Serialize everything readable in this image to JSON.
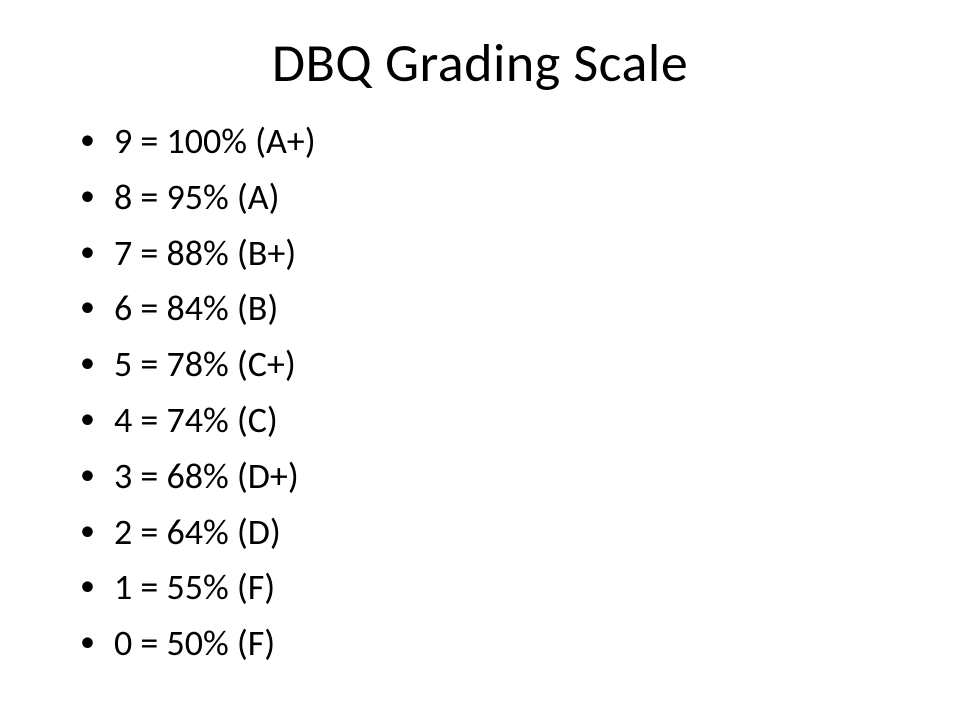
{
  "slide": {
    "title": "DBQ Grading Scale",
    "title_fontsize": 54,
    "title_color": "#000000",
    "background_color": "#ffffff",
    "bullet_color": "#000000",
    "bullet_fontsize": 36,
    "items": [
      "9 = 100% (A+)",
      "8 = 95% (A)",
      "7 = 88% (B+)",
      "6 = 84% (B)",
      "5 = 78% (C+)",
      "4 = 74% (C)",
      "3 = 68% (D+)",
      "2 = 64% (D)",
      "1 = 55% (F)",
      "0 = 50% (F)"
    ]
  }
}
